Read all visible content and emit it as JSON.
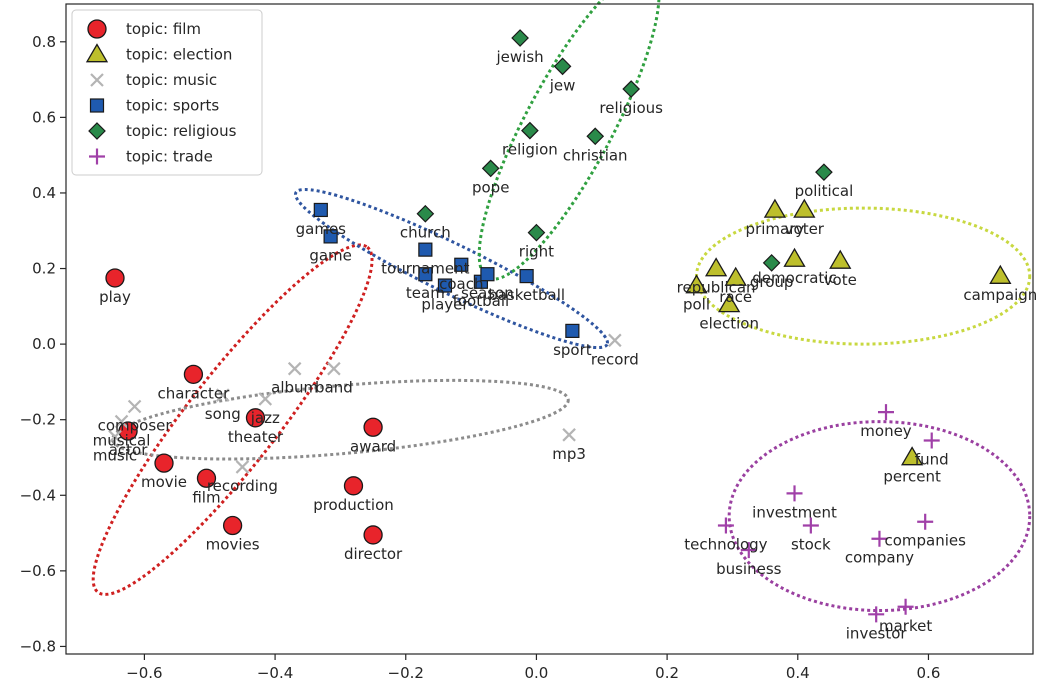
{
  "chart_data": {
    "type": "scatter",
    "title": "",
    "xlabel": "",
    "ylabel": "",
    "xlim": [
      -0.72,
      0.76
    ],
    "ylim": [
      -0.82,
      0.9
    ],
    "grid": false,
    "legend_position": "top-left",
    "x_ticks": [
      -0.6,
      -0.4,
      -0.2,
      0.0,
      0.2,
      0.4,
      0.6
    ],
    "x_tick_labels": [
      "−0.6",
      "−0.4",
      "−0.2",
      "0.0",
      "0.2",
      "0.4",
      "0.6"
    ],
    "y_ticks": [
      0.8,
      0.6,
      0.4,
      0.2,
      0.0,
      -0.2,
      -0.4,
      -0.6,
      -0.8
    ],
    "y_tick_labels": [
      "0.8",
      "0.6",
      "0.4",
      "0.2",
      "0.0",
      "−0.2",
      "−0.4",
      "−0.6",
      "−0.8"
    ],
    "series": [
      {
        "name": "topic: film",
        "marker": "circle",
        "color": "#e8242b",
        "points": [
          {
            "label": "play",
            "x": -0.645,
            "y": 0.175
          },
          {
            "label": "character",
            "x": -0.525,
            "y": -0.08
          },
          {
            "label": "actor",
            "x": -0.625,
            "y": -0.23
          },
          {
            "label": "movie",
            "x": -0.57,
            "y": -0.315
          },
          {
            "label": "film",
            "x": -0.505,
            "y": -0.355
          },
          {
            "label": "theater",
            "x": -0.43,
            "y": -0.195
          },
          {
            "label": "movies",
            "x": -0.465,
            "y": -0.48
          },
          {
            "label": "award",
            "x": -0.25,
            "y": -0.22
          },
          {
            "label": "production",
            "x": -0.28,
            "y": -0.375
          },
          {
            "label": "director",
            "x": -0.25,
            "y": -0.505
          }
        ]
      },
      {
        "name": "topic: election",
        "marker": "triangle",
        "color": "#bdbf2c",
        "points": [
          {
            "label": "primary",
            "x": 0.365,
            "y": 0.355
          },
          {
            "label": "voter",
            "x": 0.41,
            "y": 0.355
          },
          {
            "label": "republican",
            "x": 0.275,
            "y": 0.2
          },
          {
            "label": "poll",
            "x": 0.245,
            "y": 0.155
          },
          {
            "label": "race",
            "x": 0.305,
            "y": 0.175
          },
          {
            "label": "election",
            "x": 0.295,
            "y": 0.105
          },
          {
            "label": "democratic",
            "x": 0.395,
            "y": 0.225
          },
          {
            "label": "vote",
            "x": 0.465,
            "y": 0.22
          },
          {
            "label": "campaign",
            "x": 0.71,
            "y": 0.18
          },
          {
            "label": "percent",
            "x": 0.575,
            "y": -0.3
          }
        ]
      },
      {
        "name": "topic: music",
        "marker": "x",
        "color": "#b4b4b4",
        "points": [
          {
            "label": "composer",
            "x": -0.615,
            "y": -0.165
          },
          {
            "label": "musical",
            "x": -0.635,
            "y": -0.205
          },
          {
            "label": "music",
            "x": -0.645,
            "y": -0.245
          },
          {
            "label": "song",
            "x": -0.48,
            "y": -0.135
          },
          {
            "label": "jazz",
            "x": -0.415,
            "y": -0.145
          },
          {
            "label": "album",
            "x": -0.37,
            "y": -0.065
          },
          {
            "label": "band",
            "x": -0.31,
            "y": -0.065
          },
          {
            "label": "recording",
            "x": -0.45,
            "y": -0.325
          },
          {
            "label": "mp3",
            "x": 0.05,
            "y": -0.24
          },
          {
            "label": "record",
            "x": 0.12,
            "y": 0.01
          }
        ]
      },
      {
        "name": "topic: sports",
        "marker": "square",
        "color": "#1f5aaf",
        "points": [
          {
            "label": "games",
            "x": -0.33,
            "y": 0.355
          },
          {
            "label": "game",
            "x": -0.315,
            "y": 0.285
          },
          {
            "label": "tournament",
            "x": -0.17,
            "y": 0.25
          },
          {
            "label": "team",
            "x": -0.17,
            "y": 0.185
          },
          {
            "label": "coach",
            "x": -0.115,
            "y": 0.21
          },
          {
            "label": "football",
            "x": -0.085,
            "y": 0.165
          },
          {
            "label": "player",
            "x": -0.14,
            "y": 0.155
          },
          {
            "label": "season",
            "x": -0.075,
            "y": 0.185
          },
          {
            "label": "basketball",
            "x": -0.015,
            "y": 0.18
          },
          {
            "label": "sport",
            "x": 0.055,
            "y": 0.035
          }
        ]
      },
      {
        "name": "topic: religious",
        "marker": "diamond",
        "color": "#2a8a4a",
        "points": [
          {
            "label": "jewish",
            "x": -0.025,
            "y": 0.81
          },
          {
            "label": "jew",
            "x": 0.04,
            "y": 0.735
          },
          {
            "label": "religious",
            "x": 0.145,
            "y": 0.675
          },
          {
            "label": "religion",
            "x": -0.01,
            "y": 0.565
          },
          {
            "label": "christian",
            "x": 0.09,
            "y": 0.55
          },
          {
            "label": "pope",
            "x": -0.07,
            "y": 0.465
          },
          {
            "label": "church",
            "x": -0.17,
            "y": 0.345
          },
          {
            "label": "right",
            "x": 0.0,
            "y": 0.295
          },
          {
            "label": "political",
            "x": 0.44,
            "y": 0.455
          },
          {
            "label": "group",
            "x": 0.36,
            "y": 0.215
          }
        ]
      },
      {
        "name": "topic: trade",
        "marker": "plus",
        "color": "#a040a8",
        "points": [
          {
            "label": "money",
            "x": 0.535,
            "y": -0.18
          },
          {
            "label": "fund",
            "x": 0.605,
            "y": -0.255
          },
          {
            "label": "investment",
            "x": 0.395,
            "y": -0.395
          },
          {
            "label": "technology",
            "x": 0.29,
            "y": -0.48
          },
          {
            "label": "stock",
            "x": 0.42,
            "y": -0.48
          },
          {
            "label": "companies",
            "x": 0.595,
            "y": -0.47
          },
          {
            "label": "company",
            "x": 0.525,
            "y": -0.515
          },
          {
            "label": "business",
            "x": 0.325,
            "y": -0.545
          },
          {
            "label": "investor",
            "x": 0.52,
            "y": -0.715
          },
          {
            "label": "market",
            "x": 0.565,
            "y": -0.695
          }
        ]
      }
    ],
    "cluster_ellipses": [
      {
        "series": "topic: film",
        "color": "#cf2020",
        "cx": -0.465,
        "cy": -0.2,
        "rx": 0.335,
        "ry": 0.12,
        "angle_deg": 52
      },
      {
        "series": "topic: music",
        "color": "#8c8c8c",
        "cx": -0.3,
        "cy": -0.2,
        "rx": 0.35,
        "ry": 0.09,
        "angle_deg": 5
      },
      {
        "series": "topic: sports",
        "color": "#2f55a0",
        "cx": -0.13,
        "cy": 0.2,
        "rx": 0.265,
        "ry": 0.065,
        "angle_deg": -26
      },
      {
        "series": "topic: religious",
        "color": "#30a040",
        "cx": 0.05,
        "cy": 0.58,
        "rx": 0.265,
        "ry": 0.115,
        "angle_deg": 62
      },
      {
        "series": "topic: election",
        "color": "#c8d840",
        "cx": 0.5,
        "cy": 0.18,
        "rx": 0.255,
        "ry": 0.18,
        "angle_deg": 0
      },
      {
        "series": "topic: trade",
        "color": "#9a40a0",
        "cx": 0.525,
        "cy": -0.455,
        "rx": 0.23,
        "ry": 0.25,
        "angle_deg": 0
      }
    ]
  }
}
